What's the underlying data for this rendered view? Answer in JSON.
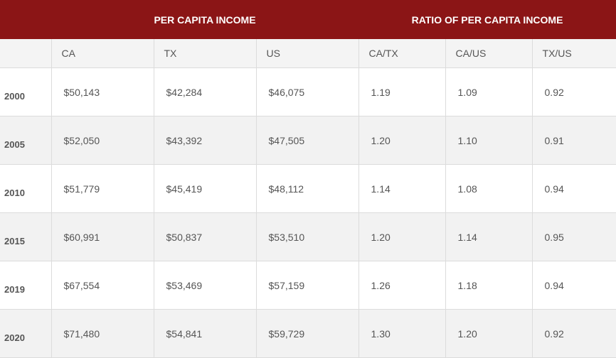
{
  "header": {
    "group_income": "PER CAPITA INCOME",
    "group_ratio": "RATIO OF PER CAPITA INCOME"
  },
  "columns": [
    "",
    "CA",
    "TX",
    "US",
    "CA/TX",
    "CA/US",
    "TX/US"
  ],
  "rows": [
    {
      "year": "2000",
      "ca": "$50,143",
      "tx": "$42,284",
      "us": "$46,075",
      "ca_tx": "1.19",
      "ca_us": "1.09",
      "tx_us": "0.92"
    },
    {
      "year": "2005",
      "ca": "$52,050",
      "tx": "$43,392",
      "us": "$47,505",
      "ca_tx": "1.20",
      "ca_us": "1.10",
      "tx_us": "0.91"
    },
    {
      "year": "2010",
      "ca": "$51,779",
      "tx": "$45,419",
      "us": "$48,112",
      "ca_tx": "1.14",
      "ca_us": "1.08",
      "tx_us": "0.94"
    },
    {
      "year": "2015",
      "ca": "$60,991",
      "tx": "$50,837",
      "us": "$53,510",
      "ca_tx": "1.20",
      "ca_us": "1.14",
      "tx_us": "0.95"
    },
    {
      "year": "2019",
      "ca": "$67,554",
      "tx": "$53,469",
      "us": "$57,159",
      "ca_tx": "1.26",
      "ca_us": "1.18",
      "tx_us": "0.94"
    },
    {
      "year": "2020",
      "ca": "$71,480",
      "tx": "$54,841",
      "us": "$59,729",
      "ca_tx": "1.30",
      "ca_us": "1.20",
      "tx_us": "0.92"
    }
  ],
  "colors": {
    "header_bg": "#8b1516",
    "header_text": "#ffffff",
    "stripe": "#f2f2f2"
  }
}
